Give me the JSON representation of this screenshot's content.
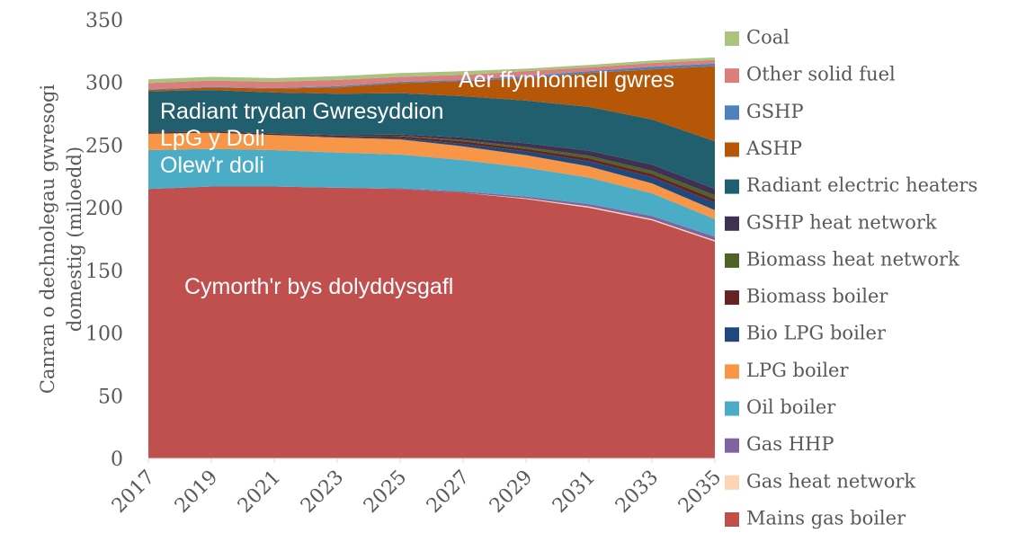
{
  "chart_data": {
    "type": "stacked_area",
    "y_label": [
      "Canran o dechnolegau gwresogi",
      "domestig (miloedd)"
    ],
    "x": [
      2017,
      2019,
      2021,
      2023,
      2025,
      2027,
      2029,
      2031,
      2033,
      2035
    ],
    "xlim": [
      2017,
      2035
    ],
    "xticks": [
      2017,
      2019,
      2021,
      2023,
      2025,
      2027,
      2029,
      2031,
      2033,
      2035
    ],
    "ylim": [
      0,
      350
    ],
    "yticks": [
      0,
      50,
      100,
      150,
      200,
      250,
      300,
      350
    ],
    "series": [
      {
        "name": "Mains gas boiler",
        "color": "#c0504d",
        "values": [
          215,
          217,
          217,
          216,
          215,
          212,
          207,
          200,
          190,
          173
        ]
      },
      {
        "name": "Gas heat network",
        "color": "#fcd5b5",
        "values": [
          0,
          0,
          0,
          0,
          0,
          0,
          0.5,
          1,
          1,
          1
        ]
      },
      {
        "name": "Gas HHP",
        "color": "#8064a2",
        "values": [
          0,
          0,
          0,
          0,
          0.5,
          1,
          1.5,
          2,
          2.5,
          3
        ]
      },
      {
        "name": "Oil boiler",
        "color": "#4bacc6",
        "values": [
          31,
          30,
          29,
          28,
          27,
          25,
          23,
          21,
          18,
          14
        ]
      },
      {
        "name": "LPG boiler",
        "color": "#f79646",
        "values": [
          13,
          13,
          12,
          12,
          12,
          11,
          10,
          9,
          8,
          7
        ]
      },
      {
        "name": "Bio LPG boiler",
        "color": "#1f497d",
        "values": [
          0,
          0,
          0,
          0.5,
          1,
          2,
          3,
          4,
          5,
          6
        ]
      },
      {
        "name": "Biomass boiler",
        "color": "#632423",
        "values": [
          1,
          1,
          1,
          1,
          1.5,
          2,
          2,
          2.5,
          2.5,
          3
        ]
      },
      {
        "name": "Biomass heat network",
        "color": "#4f6228",
        "values": [
          0,
          0,
          0,
          0,
          0.5,
          1,
          1.5,
          2,
          2.5,
          3
        ]
      },
      {
        "name": "GSHP heat network",
        "color": "#3f3151",
        "values": [
          0,
          0,
          0,
          0.5,
          1,
          2,
          3,
          4,
          5,
          5
        ]
      },
      {
        "name": "Radiant electric heaters",
        "color": "#215f6e",
        "values": [
          33,
          33,
          33,
          33,
          33,
          33,
          34,
          35,
          36,
          38
        ]
      },
      {
        "name": "ASHP",
        "color": "#b65708",
        "values": [
          1,
          2,
          3,
          5,
          8,
          12,
          18,
          27,
          40,
          60
        ]
      },
      {
        "name": "GSHP",
        "color": "#4f81bd",
        "values": [
          0.5,
          0.5,
          0.5,
          1,
          1,
          1,
          1.5,
          1.5,
          2,
          2
        ]
      },
      {
        "name": "Other solid fuel",
        "color": "#d9807e",
        "values": [
          5,
          5,
          5,
          5,
          4,
          4,
          4,
          3,
          3,
          3
        ]
      },
      {
        "name": "Coal",
        "color": "#a9c47f",
        "values": [
          3,
          3,
          3,
          3,
          3,
          3,
          2,
          2,
          2,
          2
        ]
      }
    ],
    "annotations": [
      "Cymorth'r bys dolyddysgafl",
      "Olew'r doli",
      "LpG y Doli",
      "Radiant trydan Gwresyddion",
      "Aer ffynhonnell gwres"
    ]
  }
}
